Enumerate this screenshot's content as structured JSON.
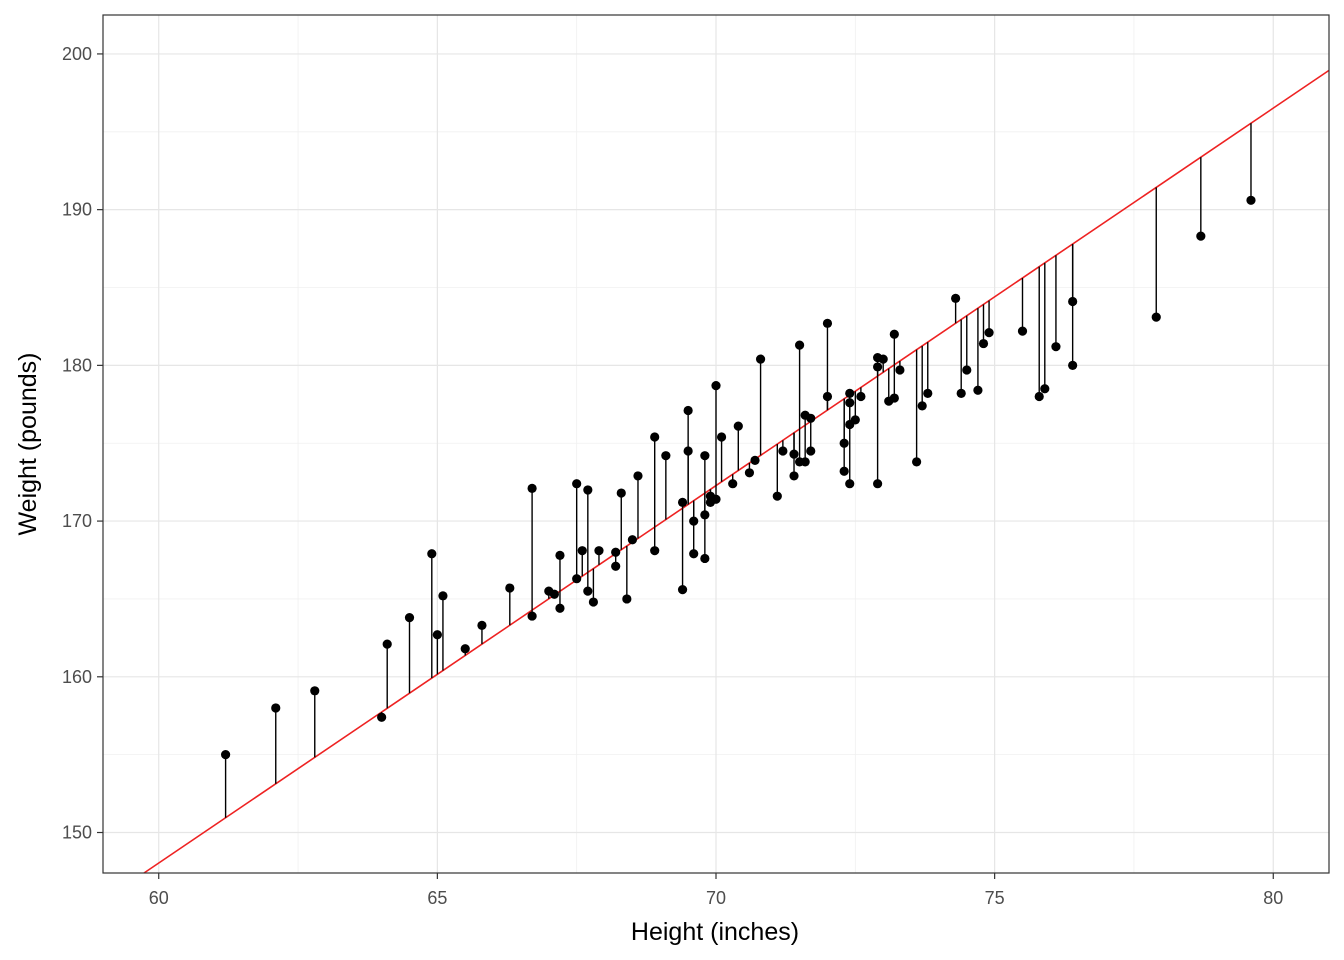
{
  "chart_data": {
    "type": "scatter",
    "xlabel": "Height (inches)",
    "ylabel": "Weight (pounds)",
    "xlim": [
      59.0,
      81.0
    ],
    "ylim": [
      147.4,
      202.5
    ],
    "x_ticks": [
      60,
      65,
      70,
      75,
      80
    ],
    "y_ticks": [
      150,
      160,
      170,
      180,
      190,
      200
    ],
    "grid": true,
    "fit_line": {
      "intercept": 2.6,
      "slope": 2.424,
      "color": "#ee2222"
    },
    "residual_segments": true,
    "point_color": "#000000",
    "points": [
      {
        "x": 61.2,
        "y": 155.0
      },
      {
        "x": 62.1,
        "y": 158.0
      },
      {
        "x": 62.8,
        "y": 159.1
      },
      {
        "x": 64.0,
        "y": 157.4
      },
      {
        "x": 64.1,
        "y": 162.1
      },
      {
        "x": 64.5,
        "y": 163.8
      },
      {
        "x": 64.9,
        "y": 167.9
      },
      {
        "x": 65.0,
        "y": 162.7
      },
      {
        "x": 65.1,
        "y": 165.2
      },
      {
        "x": 65.5,
        "y": 161.8
      },
      {
        "x": 65.8,
        "y": 163.3
      },
      {
        "x": 66.3,
        "y": 165.7
      },
      {
        "x": 66.7,
        "y": 163.9
      },
      {
        "x": 66.7,
        "y": 172.1
      },
      {
        "x": 67.0,
        "y": 165.5
      },
      {
        "x": 67.1,
        "y": 165.3
      },
      {
        "x": 67.2,
        "y": 167.8
      },
      {
        "x": 67.2,
        "y": 164.4
      },
      {
        "x": 67.5,
        "y": 166.3
      },
      {
        "x": 67.5,
        "y": 172.4
      },
      {
        "x": 67.6,
        "y": 168.1
      },
      {
        "x": 67.7,
        "y": 172.0
      },
      {
        "x": 67.7,
        "y": 165.5
      },
      {
        "x": 67.8,
        "y": 164.8
      },
      {
        "x": 67.9,
        "y": 168.1
      },
      {
        "x": 68.2,
        "y": 167.1
      },
      {
        "x": 68.2,
        "y": 168.0
      },
      {
        "x": 68.3,
        "y": 171.8
      },
      {
        "x": 68.4,
        "y": 165.0
      },
      {
        "x": 68.5,
        "y": 168.8
      },
      {
        "x": 68.6,
        "y": 172.9
      },
      {
        "x": 68.9,
        "y": 168.1
      },
      {
        "x": 68.9,
        "y": 175.4
      },
      {
        "x": 69.1,
        "y": 174.2
      },
      {
        "x": 69.4,
        "y": 165.6
      },
      {
        "x": 69.4,
        "y": 171.2
      },
      {
        "x": 69.5,
        "y": 174.5
      },
      {
        "x": 69.5,
        "y": 177.1
      },
      {
        "x": 69.6,
        "y": 167.9
      },
      {
        "x": 69.6,
        "y": 170.0
      },
      {
        "x": 69.8,
        "y": 170.4
      },
      {
        "x": 69.8,
        "y": 174.2
      },
      {
        "x": 69.8,
        "y": 167.6
      },
      {
        "x": 69.9,
        "y": 171.2
      },
      {
        "x": 69.9,
        "y": 171.6
      },
      {
        "x": 70.0,
        "y": 171.4
      },
      {
        "x": 70.0,
        "y": 178.7
      },
      {
        "x": 70.1,
        "y": 175.4
      },
      {
        "x": 70.3,
        "y": 172.4
      },
      {
        "x": 70.4,
        "y": 176.1
      },
      {
        "x": 70.6,
        "y": 173.1
      },
      {
        "x": 70.7,
        "y": 173.9
      },
      {
        "x": 70.8,
        "y": 180.4
      },
      {
        "x": 71.1,
        "y": 171.6
      },
      {
        "x": 71.2,
        "y": 174.5
      },
      {
        "x": 71.4,
        "y": 172.9
      },
      {
        "x": 71.4,
        "y": 174.3
      },
      {
        "x": 71.5,
        "y": 173.8
      },
      {
        "x": 71.5,
        "y": 181.3
      },
      {
        "x": 71.6,
        "y": 173.8
      },
      {
        "x": 71.6,
        "y": 176.8
      },
      {
        "x": 71.7,
        "y": 176.6
      },
      {
        "x": 71.7,
        "y": 174.5
      },
      {
        "x": 72.0,
        "y": 182.7
      },
      {
        "x": 72.0,
        "y": 178.0
      },
      {
        "x": 72.3,
        "y": 175.0
      },
      {
        "x": 72.3,
        "y": 173.2
      },
      {
        "x": 72.4,
        "y": 172.4
      },
      {
        "x": 72.4,
        "y": 177.6
      },
      {
        "x": 72.4,
        "y": 178.2
      },
      {
        "x": 72.4,
        "y": 176.2
      },
      {
        "x": 72.5,
        "y": 176.5
      },
      {
        "x": 72.6,
        "y": 178.0
      },
      {
        "x": 72.9,
        "y": 180.5
      },
      {
        "x": 72.9,
        "y": 179.9
      },
      {
        "x": 72.9,
        "y": 172.4
      },
      {
        "x": 73.0,
        "y": 180.4
      },
      {
        "x": 73.1,
        "y": 177.7
      },
      {
        "x": 73.2,
        "y": 177.9
      },
      {
        "x": 73.2,
        "y": 182.0
      },
      {
        "x": 73.3,
        "y": 179.7
      },
      {
        "x": 73.6,
        "y": 173.8
      },
      {
        "x": 73.7,
        "y": 177.4
      },
      {
        "x": 73.8,
        "y": 178.2
      },
      {
        "x": 74.3,
        "y": 184.3
      },
      {
        "x": 74.4,
        "y": 178.2
      },
      {
        "x": 74.5,
        "y": 179.7
      },
      {
        "x": 74.7,
        "y": 178.4
      },
      {
        "x": 74.8,
        "y": 181.4
      },
      {
        "x": 74.9,
        "y": 182.1
      },
      {
        "x": 75.5,
        "y": 182.2
      },
      {
        "x": 75.8,
        "y": 178.0
      },
      {
        "x": 75.9,
        "y": 178.5
      },
      {
        "x": 76.1,
        "y": 181.2
      },
      {
        "x": 76.4,
        "y": 180.0
      },
      {
        "x": 76.4,
        "y": 184.1
      },
      {
        "x": 77.9,
        "y": 183.1
      },
      {
        "x": 78.7,
        "y": 188.3
      },
      {
        "x": 79.6,
        "y": 190.6
      }
    ]
  }
}
